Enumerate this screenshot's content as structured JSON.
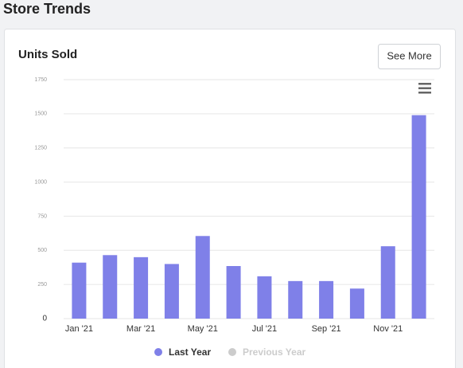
{
  "header": {
    "title": "Store Trends"
  },
  "card": {
    "title": "Units Sold",
    "button": "See More"
  },
  "chart_data": {
    "type": "bar",
    "categories": [
      "Jan '21",
      null,
      "Mar '21",
      null,
      "May '21",
      null,
      "Jul '21",
      null,
      "Sep '21",
      null,
      "Nov '21",
      null
    ],
    "series": [
      {
        "name": "Last Year",
        "color": "#7f80e8",
        "visible": true,
        "values": [
          410,
          465,
          450,
          400,
          605,
          385,
          310,
          275,
          275,
          220,
          530,
          1490
        ]
      },
      {
        "name": "Previous Year",
        "color": "#cccccc",
        "visible": false,
        "values": [
          null,
          null,
          null,
          null,
          null,
          null,
          null,
          null,
          null,
          null,
          null,
          null
        ]
      }
    ],
    "ylim": [
      0,
      1750
    ],
    "yticks": [
      0,
      250,
      500,
      750,
      1000,
      1250,
      1500,
      1750
    ],
    "grid": true,
    "legend": "bottom"
  }
}
